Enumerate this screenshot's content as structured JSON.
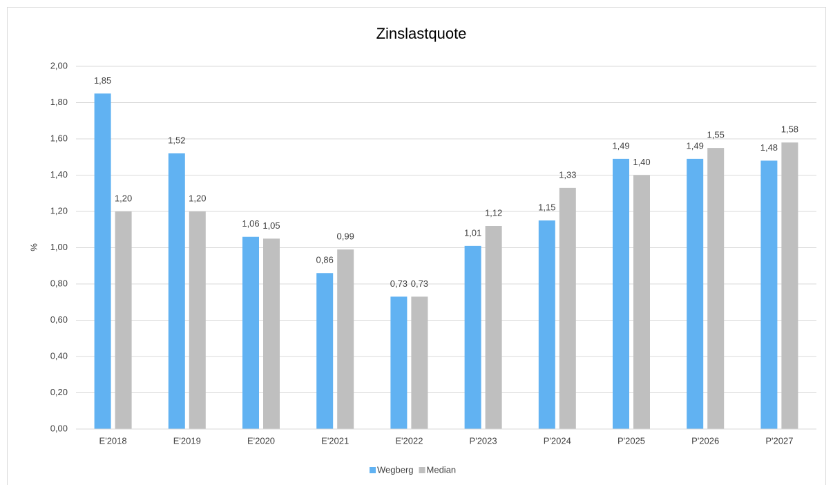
{
  "chart_data": {
    "type": "bar",
    "title": "Zinslastquote",
    "y_label": "%",
    "categories": [
      "E'2018",
      "E'2019",
      "E'2020",
      "E'2021",
      "E'2022",
      "P'2023",
      "P'2024",
      "P'2025",
      "P'2026",
      "P'2027"
    ],
    "series": [
      {
        "name": "Wegberg",
        "color": "#61b2f2",
        "values": [
          1.85,
          1.52,
          1.06,
          0.86,
          0.73,
          1.01,
          1.15,
          1.49,
          1.49,
          1.48
        ],
        "value_labels": [
          "1,85",
          "1,52",
          "1,06",
          "0,86",
          "0,73",
          "1,01",
          "1,15",
          "1,49",
          "1,49",
          "1,48"
        ]
      },
      {
        "name": "Median",
        "color": "#bfbfbf",
        "values": [
          1.2,
          1.2,
          1.05,
          0.99,
          0.73,
          1.12,
          1.33,
          1.4,
          1.55,
          1.58
        ],
        "value_labels": [
          "1,20",
          "1,20",
          "1,05",
          "0,99",
          "0,73",
          "1,12",
          "1,33",
          "1,40",
          "1,55",
          "1,58"
        ]
      }
    ],
    "ylim": [
      0,
      2
    ],
    "yticks": [
      {
        "value": 0,
        "label": "0,00"
      },
      {
        "value": 0.2,
        "label": "0,20"
      },
      {
        "value": 0.4,
        "label": "0,40"
      },
      {
        "value": 0.6,
        "label": "0,60"
      },
      {
        "value": 0.8,
        "label": "0,80"
      },
      {
        "value": 1,
        "label": "1,00"
      },
      {
        "value": 1.2,
        "label": "1,20"
      },
      {
        "value": 1.4,
        "label": "1,40"
      },
      {
        "value": 1.6,
        "label": "1,60"
      },
      {
        "value": 1.8,
        "label": "1,80"
      },
      {
        "value": 2,
        "label": "2,00"
      }
    ],
    "grid": true,
    "legend": "bottom"
  }
}
